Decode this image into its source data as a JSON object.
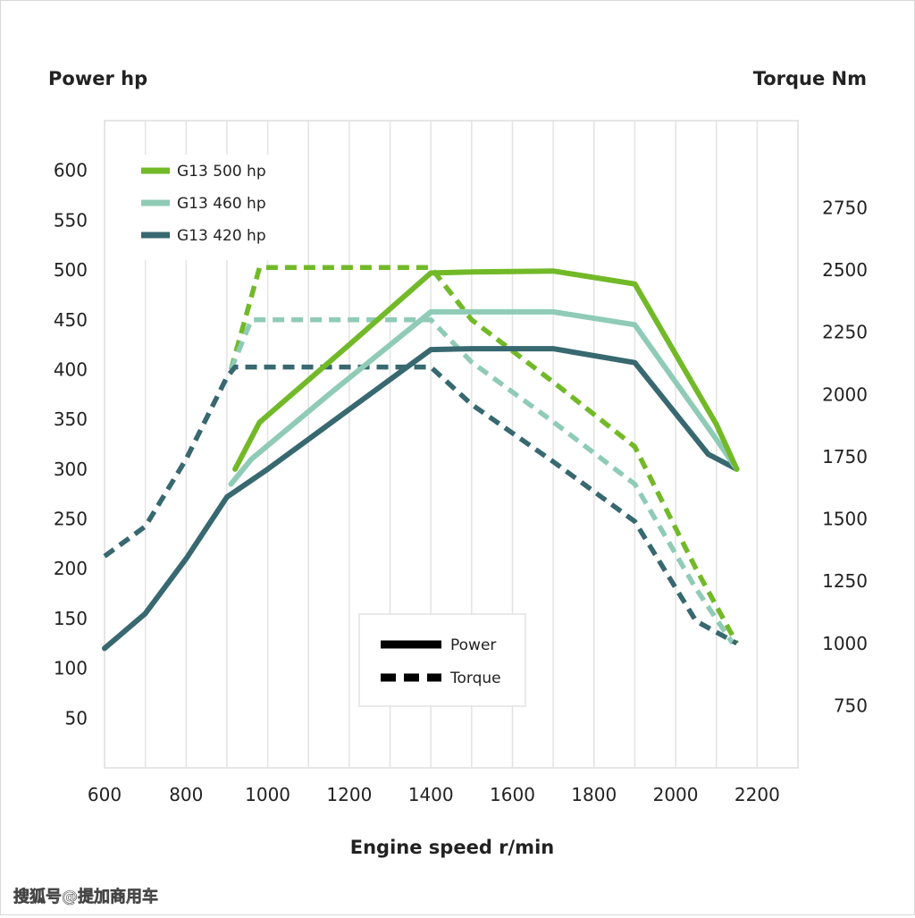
{
  "chart_data": {
    "type": "line",
    "xlabel": "Engine speed r/min",
    "ylabel_left": "Power hp",
    "ylabel_right": "Torque Nm",
    "xlim": [
      600,
      2300
    ],
    "ylim_left": [
      0,
      650
    ],
    "ylim_right": [
      500,
      3100
    ],
    "x_ticks": [
      600,
      800,
      1000,
      1200,
      1400,
      1600,
      1800,
      2000,
      2200
    ],
    "y_ticks_left": [
      50,
      100,
      150,
      200,
      250,
      300,
      350,
      400,
      450,
      500,
      550,
      600
    ],
    "y_ticks_right": [
      750,
      1000,
      1250,
      1500,
      1750,
      2000,
      2250,
      2500,
      2750
    ],
    "grid": true,
    "colors": {
      "G13 500 hp": "#72b928",
      "G13 460 hp": "#8fcbb6",
      "G13 420 hp": "#386870"
    },
    "legend_series": [
      "G13 500 hp",
      "G13 460 hp",
      "G13 420 hp"
    ],
    "legend_series_placement": "top-left",
    "legend_style": {
      "power": "Power",
      "torque": "Torque"
    },
    "legend_style_placement": "bottom-center",
    "power_series": [
      {
        "name": "G13 500 hp",
        "x": [
          920,
          980,
          1200,
          1400,
          1500,
          1700,
          1900,
          2100,
          2150
        ],
        "y": [
          300,
          347,
          425,
          497,
          498,
          499,
          486,
          345,
          300
        ]
      },
      {
        "name": "G13 460 hp",
        "x": [
          910,
          960,
          1150,
          1400,
          1500,
          1700,
          1900,
          2100,
          2150
        ],
        "y": [
          285,
          310,
          375,
          458,
          458,
          458,
          445,
          330,
          300
        ]
      },
      {
        "name": "G13 420 hp",
        "x": [
          600,
          700,
          800,
          900,
          1000,
          1200,
          1400,
          1500,
          1700,
          1900,
          2080,
          2150
        ],
        "y": [
          120,
          155,
          210,
          272,
          300,
          360,
          420,
          421,
          421,
          407,
          315,
          300
        ]
      }
    ],
    "torque_series": [
      {
        "name": "G13 500 hp",
        "x": [
          910,
          980,
          1400,
          1500,
          1700,
          1900,
          2050,
          2150
        ],
        "y": [
          2100,
          2510,
          2510,
          2300,
          2050,
          1790,
          1300,
          1000
        ]
      },
      {
        "name": "G13 460 hp",
        "x": [
          910,
          960,
          1400,
          1500,
          1700,
          1900,
          2050,
          2140
        ],
        "y": [
          2100,
          2300,
          2300,
          2130,
          1890,
          1640,
          1220,
          1000
        ]
      },
      {
        "name": "G13 420 hp",
        "x": [
          600,
          700,
          800,
          900,
          920,
          1400,
          1500,
          1700,
          1900,
          2050,
          2150
        ],
        "y": [
          1350,
          1470,
          1740,
          2070,
          2110,
          2110,
          1960,
          1730,
          1490,
          1090,
          1000
        ]
      }
    ]
  },
  "watermark": "搜狐号@提加商用车"
}
